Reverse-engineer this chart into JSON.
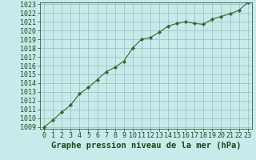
{
  "x": [
    0,
    1,
    2,
    3,
    4,
    5,
    6,
    7,
    8,
    9,
    10,
    11,
    12,
    13,
    14,
    15,
    16,
    17,
    18,
    19,
    20,
    21,
    22,
    23
  ],
  "y": [
    1009.0,
    1009.8,
    1010.7,
    1011.5,
    1012.8,
    1013.5,
    1014.4,
    1015.3,
    1015.8,
    1016.5,
    1018.0,
    1019.0,
    1019.2,
    1019.8,
    1020.5,
    1020.8,
    1021.0,
    1020.8,
    1020.7,
    1021.3,
    1021.6,
    1021.9,
    1022.3,
    1023.2
  ],
  "xlim": [
    -0.5,
    23.5
  ],
  "ylim": [
    1009,
    1023
  ],
  "yticks": [
    1009,
    1010,
    1011,
    1012,
    1013,
    1014,
    1015,
    1016,
    1017,
    1018,
    1019,
    1020,
    1021,
    1022,
    1023
  ],
  "xticks": [
    0,
    1,
    2,
    3,
    4,
    5,
    6,
    7,
    8,
    9,
    10,
    11,
    12,
    13,
    14,
    15,
    16,
    17,
    18,
    19,
    20,
    21,
    22,
    23
  ],
  "xlabel": "Graphe pression niveau de la mer (hPa)",
  "line_color": "#2d6a2d",
  "marker": "D",
  "marker_size": 2.2,
  "bg_color": "#c8eaea",
  "grid_color": "#9abcbc",
  "axis_label_color": "#1a4a1a",
  "tick_label_color": "#1a4a1a",
  "xlabel_fontsize": 7.5,
  "tick_fontsize": 6.0
}
